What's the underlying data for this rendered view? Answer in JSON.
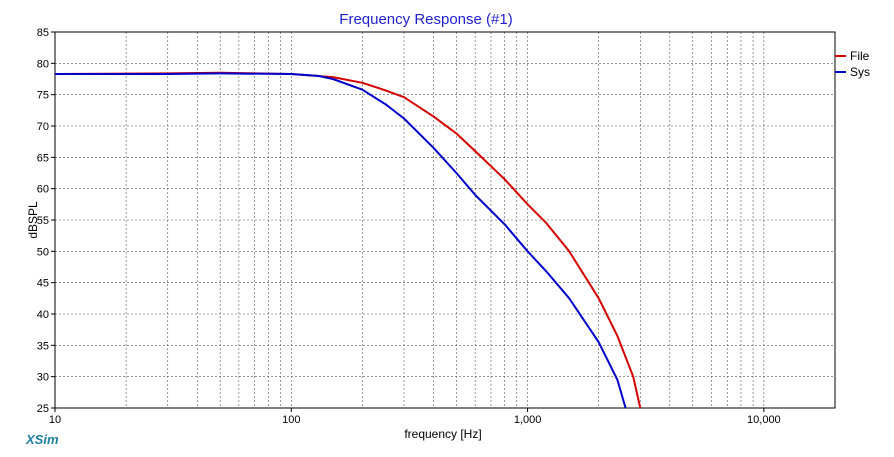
{
  "app": {
    "brand": "XSim"
  },
  "chart_data": {
    "type": "line",
    "title": "Frequency Response (#1)",
    "xlabel": "frequency [Hz]",
    "ylabel": "dBSPL",
    "xscale": "log",
    "xlim": [
      10,
      20000
    ],
    "ylim": [
      25,
      85
    ],
    "grid": true,
    "legend_position": "top-right",
    "x_tick_labels": [
      {
        "value": 10,
        "label": "10"
      },
      {
        "value": 100,
        "label": "100"
      },
      {
        "value": 1000,
        "label": "1,000"
      },
      {
        "value": 10000,
        "label": "10,000"
      }
    ],
    "y_ticks": [
      25,
      30,
      35,
      40,
      45,
      50,
      55,
      60,
      65,
      70,
      75,
      80,
      85
    ],
    "series": [
      {
        "name": "File",
        "color": "#d40000",
        "x": [
          10,
          30,
          50,
          100,
          150,
          200,
          250,
          300,
          400,
          500,
          600,
          800,
          1000,
          1200,
          1500,
          2000,
          2400,
          2800,
          3000
        ],
        "y": [
          78.3,
          78.4,
          78.5,
          78.3,
          77.8,
          76.9,
          75.7,
          74.6,
          71.5,
          68.8,
          66.0,
          61.5,
          57.5,
          54.5,
          50.0,
          42.5,
          36.5,
          30.0,
          25.0
        ]
      },
      {
        "name": "Sys",
        "color": "#0000cc",
        "x": [
          10,
          30,
          50,
          100,
          130,
          150,
          200,
          250,
          300,
          400,
          500,
          600,
          800,
          1000,
          1200,
          1500,
          2000,
          2400,
          2600
        ],
        "y": [
          78.3,
          78.3,
          78.4,
          78.3,
          78.0,
          77.5,
          75.8,
          73.5,
          71.2,
          66.5,
          62.5,
          59.0,
          54.3,
          50.0,
          46.8,
          42.5,
          35.5,
          29.5,
          25.0
        ]
      }
    ]
  }
}
